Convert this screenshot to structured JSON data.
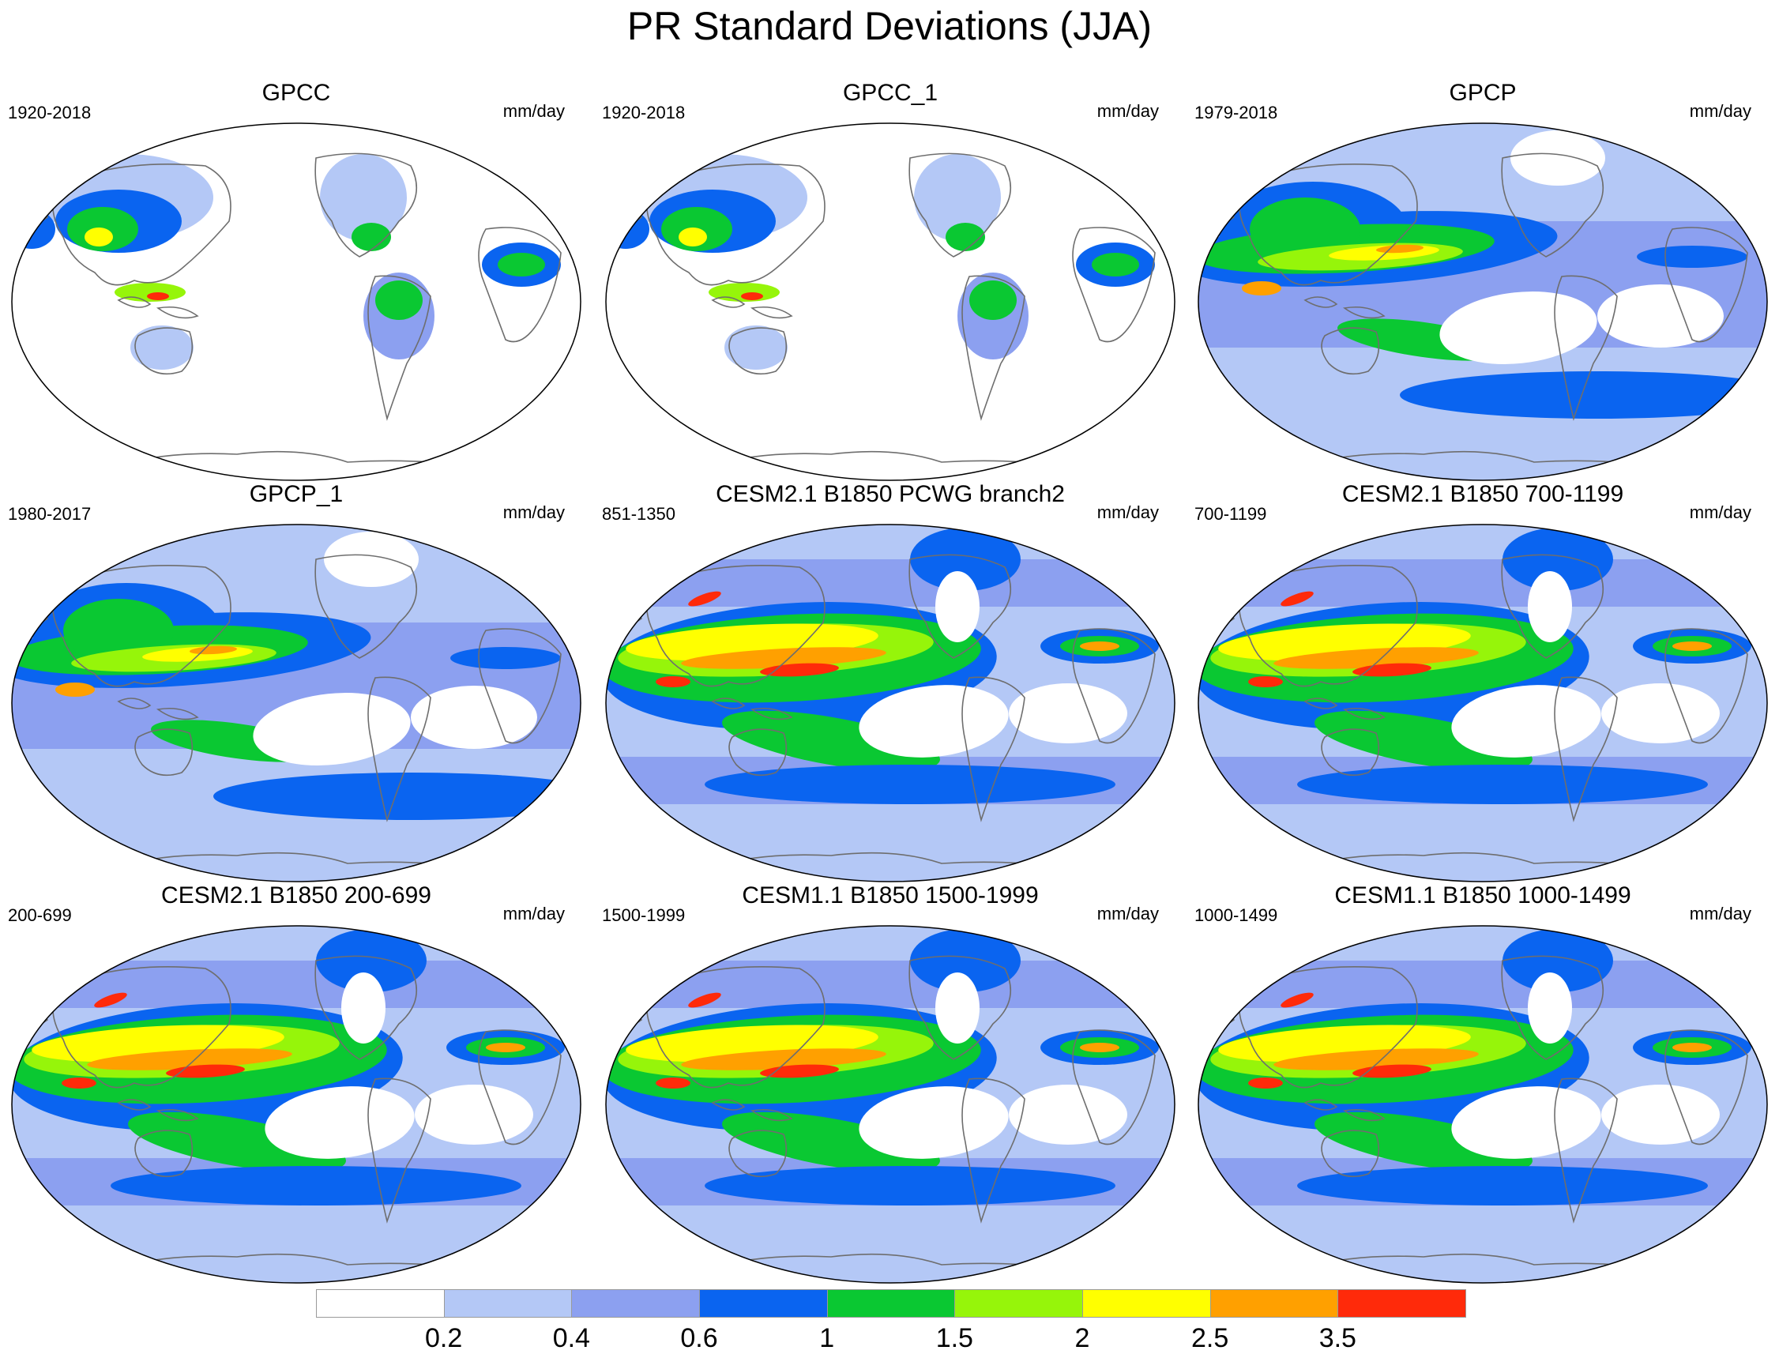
{
  "title": "PR Standard Deviations (JJA)",
  "panels": [
    {
      "title": "GPCC",
      "years": "1920-2018",
      "units": "mm/day",
      "variant": "land"
    },
    {
      "title": "GPCC_1",
      "years": "1920-2018",
      "units": "mm/day",
      "variant": "land"
    },
    {
      "title": "GPCP",
      "years": "1979-2018",
      "units": "mm/day",
      "variant": "obs"
    },
    {
      "title": "GPCP_1",
      "years": "1980-2017",
      "units": "mm/day",
      "variant": "obs"
    },
    {
      "title": "CESM2.1 B1850 PCWG branch2",
      "years": "851-1350",
      "units": "mm/day",
      "variant": "model"
    },
    {
      "title": "CESM2.1 B1850 700-1199",
      "years": "700-1199",
      "units": "mm/day",
      "variant": "model"
    },
    {
      "title": "CESM2.1 B1850 200-699",
      "years": "200-699",
      "units": "mm/day",
      "variant": "model"
    },
    {
      "title": "CESM1.1 B1850 1500-1999",
      "years": "1500-1999",
      "units": "mm/day",
      "variant": "model"
    },
    {
      "title": "CESM1.1 B1850 1000-1499",
      "years": "1000-1499",
      "units": "mm/day",
      "variant": "model"
    }
  ],
  "colorbar": {
    "colors": [
      "#ffffff",
      "#b4c8f6",
      "#8ca0f0",
      "#0a64f0",
      "#0ac832",
      "#96f50a",
      "#ffff00",
      "#ffa000",
      "#ff2a0a"
    ],
    "labels": [
      "0.2",
      "0.4",
      "0.6",
      "1",
      "1.5",
      "2",
      "2.5",
      "3.5"
    ]
  }
}
